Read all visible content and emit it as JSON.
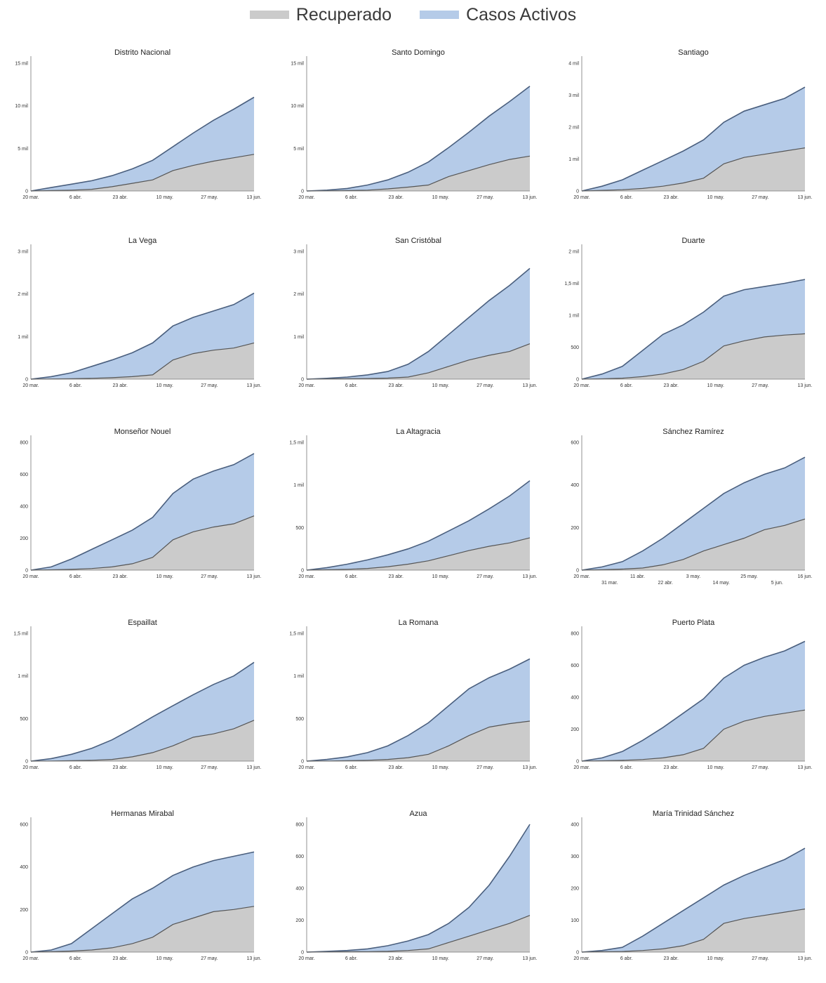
{
  "legend": {
    "recovered_label": "Recuperado",
    "active_label": "Casos Activos",
    "recovered_color": "#cbcbcb",
    "active_color": "#b5cbe8"
  },
  "colors": {
    "recovered_fill": "#cbcbcb",
    "recovered_line": "#555555",
    "total_fill": "#b5cbe8",
    "total_line": "#4a5f7e"
  },
  "x_ticks_default": [
    "20 mar.",
    "6 abr.",
    "23 abr.",
    "10 may.",
    "27 may.",
    "13 jun."
  ],
  "chart_data": [
    {
      "type": "area",
      "title": "Distrito Nacional",
      "yticks": [
        {
          "v": 0,
          "label": "0"
        },
        {
          "v": 5000,
          "label": "5 mil"
        },
        {
          "v": 10000,
          "label": "10 mil"
        },
        {
          "v": 15000,
          "label": "15 mil"
        }
      ],
      "ymax": 15000,
      "total": [
        0,
        400,
        800,
        1200,
        1800,
        2600,
        3600,
        5200,
        6800,
        8300,
        9600,
        11000
      ],
      "recovered": [
        0,
        50,
        100,
        200,
        500,
        900,
        1300,
        2400,
        3000,
        3500,
        3900,
        4300
      ]
    },
    {
      "type": "area",
      "title": "Santo Domingo",
      "yticks": [
        {
          "v": 0,
          "label": "0"
        },
        {
          "v": 5000,
          "label": "5 mil"
        },
        {
          "v": 10000,
          "label": "10 mil"
        },
        {
          "v": 15000,
          "label": "15 mil"
        }
      ],
      "ymax": 15000,
      "total": [
        0,
        100,
        300,
        700,
        1300,
        2200,
        3400,
        5100,
        6900,
        8800,
        10500,
        12300
      ],
      "recovered": [
        0,
        20,
        50,
        100,
        250,
        450,
        700,
        1700,
        2400,
        3100,
        3700,
        4100
      ]
    },
    {
      "type": "area",
      "title": "Santiago",
      "yticks": [
        {
          "v": 0,
          "label": "0"
        },
        {
          "v": 1000,
          "label": "1 mil"
        },
        {
          "v": 2000,
          "label": "2 mil"
        },
        {
          "v": 3000,
          "label": "3 mil"
        },
        {
          "v": 4000,
          "label": "4 mil"
        }
      ],
      "ymax": 4000,
      "total": [
        0,
        150,
        350,
        650,
        950,
        1250,
        1600,
        2150,
        2500,
        2700,
        2900,
        3250
      ],
      "recovered": [
        0,
        20,
        40,
        80,
        150,
        250,
        400,
        850,
        1050,
        1150,
        1250,
        1350
      ]
    },
    {
      "type": "area",
      "title": "La Vega",
      "yticks": [
        {
          "v": 0,
          "label": "0"
        },
        {
          "v": 1000,
          "label": "1 mil"
        },
        {
          "v": 2000,
          "label": "2 mil"
        },
        {
          "v": 3000,
          "label": "3 mil"
        }
      ],
      "ymax": 3000,
      "total": [
        0,
        60,
        150,
        300,
        450,
        620,
        850,
        1250,
        1450,
        1600,
        1750,
        2020
      ],
      "recovered": [
        0,
        5,
        10,
        20,
        35,
        60,
        100,
        450,
        600,
        680,
        730,
        850
      ]
    },
    {
      "type": "area",
      "title": "San Cristóbal",
      "yticks": [
        {
          "v": 0,
          "label": "0"
        },
        {
          "v": 1000,
          "label": "1 mil"
        },
        {
          "v": 2000,
          "label": "2 mil"
        },
        {
          "v": 3000,
          "label": "3 mil"
        }
      ],
      "ymax": 3000,
      "total": [
        0,
        20,
        50,
        100,
        180,
        350,
        650,
        1050,
        1450,
        1850,
        2200,
        2600
      ],
      "recovered": [
        0,
        5,
        10,
        15,
        25,
        50,
        150,
        300,
        450,
        560,
        650,
        830
      ]
    },
    {
      "type": "area",
      "title": "Duarte",
      "yticks": [
        {
          "v": 0,
          "label": "0"
        },
        {
          "v": 500,
          "label": "500"
        },
        {
          "v": 1000,
          "label": "1 mil"
        },
        {
          "v": 1500,
          "label": "1,5 mil"
        },
        {
          "v": 2000,
          "label": "2 mil"
        }
      ],
      "ymax": 2000,
      "total": [
        0,
        80,
        200,
        450,
        700,
        850,
        1050,
        1300,
        1400,
        1450,
        1500,
        1560
      ],
      "recovered": [
        0,
        5,
        15,
        40,
        80,
        150,
        280,
        520,
        600,
        660,
        690,
        710
      ]
    },
    {
      "type": "area",
      "title": "Monseñor Nouel",
      "yticks": [
        {
          "v": 0,
          "label": "0"
        },
        {
          "v": 200,
          "label": "200"
        },
        {
          "v": 400,
          "label": "400"
        },
        {
          "v": 600,
          "label": "600"
        },
        {
          "v": 800,
          "label": "800"
        }
      ],
      "ymax": 800,
      "total": [
        0,
        20,
        70,
        130,
        190,
        250,
        330,
        480,
        570,
        620,
        660,
        730
      ],
      "recovered": [
        0,
        2,
        5,
        10,
        20,
        40,
        80,
        190,
        240,
        270,
        290,
        340
      ]
    },
    {
      "type": "area",
      "title": "La Altagracia",
      "yticks": [
        {
          "v": 0,
          "label": "0"
        },
        {
          "v": 500,
          "label": "500"
        },
        {
          "v": 1000,
          "label": "1 mil"
        },
        {
          "v": 1500,
          "label": "1,5 mil"
        }
      ],
      "ymax": 1500,
      "total": [
        0,
        30,
        70,
        120,
        180,
        250,
        340,
        460,
        580,
        720,
        870,
        1050
      ],
      "recovered": [
        0,
        5,
        10,
        20,
        40,
        70,
        110,
        170,
        230,
        280,
        320,
        380
      ]
    },
    {
      "type": "area",
      "title": "Sánchez Ramírez",
      "yticks": [
        {
          "v": 0,
          "label": "0"
        },
        {
          "v": 200,
          "label": "200"
        },
        {
          "v": 400,
          "label": "400"
        },
        {
          "v": 600,
          "label": "600"
        }
      ],
      "ymax": 600,
      "total": [
        0,
        15,
        40,
        90,
        150,
        220,
        290,
        360,
        410,
        450,
        480,
        530
      ],
      "recovered": [
        0,
        2,
        5,
        10,
        25,
        50,
        90,
        120,
        150,
        190,
        210,
        240
      ],
      "xticks_top": [
        "20 mar.",
        "11 abr.",
        "3 may.",
        "25 may.",
        "16 jun."
      ],
      "xticks_bottom": [
        "31 mar.",
        "22 abr.",
        "14 may.",
        "5 jun."
      ]
    },
    {
      "type": "area",
      "title": "Espaillat",
      "yticks": [
        {
          "v": 0,
          "label": "0"
        },
        {
          "v": 500,
          "label": "500"
        },
        {
          "v": 1000,
          "label": "1 mil"
        },
        {
          "v": 1500,
          "label": "1,5 mil"
        }
      ],
      "ymax": 1500,
      "total": [
        0,
        30,
        80,
        150,
        250,
        380,
        520,
        650,
        780,
        900,
        1000,
        1160
      ],
      "recovered": [
        0,
        2,
        5,
        10,
        20,
        50,
        100,
        180,
        280,
        320,
        380,
        480
      ]
    },
    {
      "type": "area",
      "title": "La Romana",
      "yticks": [
        {
          "v": 0,
          "label": "0"
        },
        {
          "v": 500,
          "label": "500"
        },
        {
          "v": 1000,
          "label": "1 mil"
        },
        {
          "v": 1500,
          "label": "1,5 mil"
        }
      ],
      "ymax": 1500,
      "total": [
        0,
        20,
        50,
        100,
        180,
        300,
        450,
        650,
        850,
        980,
        1080,
        1200
      ],
      "recovered": [
        0,
        2,
        5,
        10,
        20,
        40,
        80,
        180,
        300,
        400,
        440,
        470
      ]
    },
    {
      "type": "area",
      "title": "Puerto Plata",
      "yticks": [
        {
          "v": 0,
          "label": "0"
        },
        {
          "v": 200,
          "label": "200"
        },
        {
          "v": 400,
          "label": "400"
        },
        {
          "v": 600,
          "label": "600"
        },
        {
          "v": 800,
          "label": "800"
        }
      ],
      "ymax": 800,
      "total": [
        0,
        20,
        60,
        130,
        210,
        300,
        390,
        520,
        600,
        650,
        690,
        750
      ],
      "recovered": [
        0,
        2,
        5,
        10,
        20,
        40,
        80,
        200,
        250,
        280,
        300,
        320
      ]
    },
    {
      "type": "area",
      "title": "Hermanas Mirabal",
      "yticks": [
        {
          "v": 0,
          "label": "0"
        },
        {
          "v": 200,
          "label": "200"
        },
        {
          "v": 400,
          "label": "400"
        },
        {
          "v": 600,
          "label": "600"
        }
      ],
      "ymax": 600,
      "total": [
        0,
        10,
        40,
        110,
        180,
        250,
        300,
        360,
        400,
        430,
        450,
        470
      ],
      "recovered": [
        0,
        2,
        5,
        10,
        20,
        40,
        70,
        130,
        160,
        190,
        200,
        215
      ]
    },
    {
      "type": "area",
      "title": "Azua",
      "yticks": [
        {
          "v": 0,
          "label": "0"
        },
        {
          "v": 200,
          "label": "200"
        },
        {
          "v": 400,
          "label": "400"
        },
        {
          "v": 600,
          "label": "600"
        },
        {
          "v": 800,
          "label": "800"
        }
      ],
      "ymax": 800,
      "total": [
        0,
        5,
        10,
        20,
        40,
        70,
        110,
        180,
        280,
        420,
        600,
        800
      ],
      "recovered": [
        0,
        1,
        2,
        3,
        5,
        10,
        20,
        60,
        100,
        140,
        180,
        230
      ]
    },
    {
      "type": "area",
      "title": "María Trinidad Sánchez",
      "yticks": [
        {
          "v": 0,
          "label": "0"
        },
        {
          "v": 100,
          "label": "100"
        },
        {
          "v": 200,
          "label": "200"
        },
        {
          "v": 300,
          "label": "300"
        },
        {
          "v": 400,
          "label": "400"
        }
      ],
      "ymax": 400,
      "total": [
        0,
        5,
        15,
        50,
        90,
        130,
        170,
        210,
        240,
        265,
        290,
        325
      ],
      "recovered": [
        0,
        1,
        2,
        5,
        10,
        20,
        40,
        90,
        105,
        115,
        125,
        135
      ]
    }
  ]
}
